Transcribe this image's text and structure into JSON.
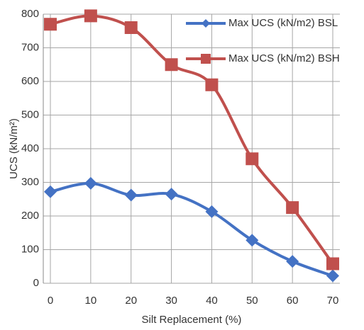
{
  "chart_data": {
    "type": "line",
    "x_label": "Silt Replacement (%)",
    "y_label": "UCS (kN/m²)",
    "x": [
      0,
      10,
      20,
      30,
      40,
      50,
      60,
      70
    ],
    "series": [
      {
        "name": "Max UCS (kN/m2) BSL",
        "color": "#4472c4",
        "marker": "diamond",
        "values": [
          272,
          297,
          262,
          265,
          213,
          128,
          65,
          22
        ]
      },
      {
        "name": "Max UCS (kN/m2) BSH",
        "color": "#c0504d",
        "marker": "square",
        "values": [
          770,
          795,
          760,
          650,
          590,
          370,
          225,
          58
        ]
      }
    ],
    "xlim": [
      0,
      70
    ],
    "xticks": [
      0,
      10,
      20,
      30,
      40,
      50,
      60,
      70
    ],
    "ylim": [
      0,
      800
    ],
    "yticks": [
      0,
      100,
      200,
      300,
      400,
      500,
      600,
      700,
      800
    ],
    "grid": true,
    "smooth": true,
    "legend": "top-right"
  }
}
